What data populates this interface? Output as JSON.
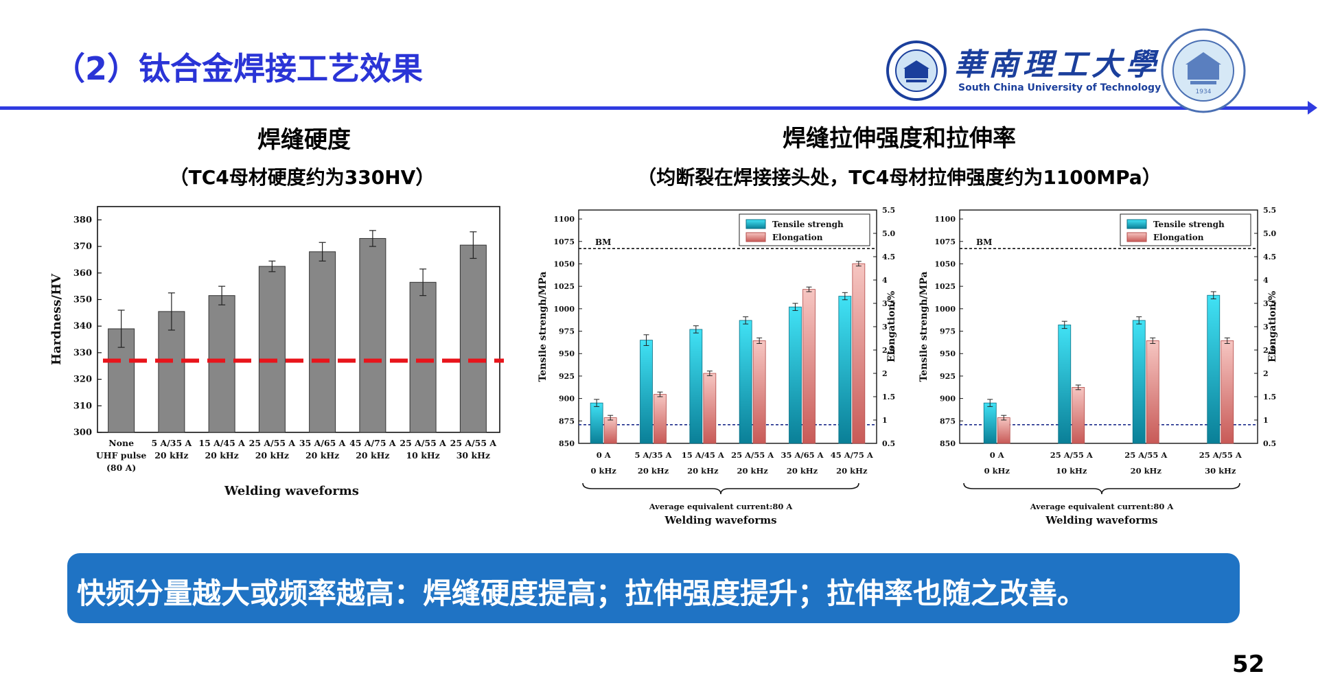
{
  "header": {
    "title": "（2）钛合金焊接工艺效果",
    "logo_cn": "華南理工大學",
    "logo_en": "South China University of Technology",
    "seal_mark": "1934"
  },
  "sections": {
    "hardness_title": "焊缝硬度",
    "hardness_subtitle": "（TC4母材硬度约为330HV）",
    "tensile_title": "焊缝拉伸强度和拉伸率",
    "tensile_subtitle": "（均断裂在焊接接头处，TC4母材拉伸强度约为1100MPa）"
  },
  "chart_data": [
    {
      "type": "bar",
      "categories": [
        "None\nUHF pulse\n(80 A)",
        "5 A/35 A\n20 kHz",
        "15 A/45 A\n20 kHz",
        "25 A/55 A\n20 kHz",
        "35 A/65 A\n20 kHz",
        "45 A/75 A\n20 kHz",
        "25 A/55 A\n10 kHz",
        "25 A/55 A\n30 kHz"
      ],
      "values": [
        339,
        345.5,
        351.5,
        362.5,
        368,
        373,
        356.5,
        370.5
      ],
      "errors": [
        7,
        7,
        3.5,
        2,
        3.5,
        3,
        5,
        5
      ],
      "reference_line": 327,
      "xlabel": "Welding waveforms",
      "ylabel": "Hardness/HV",
      "ylim": [
        300,
        385
      ],
      "yticks": [
        300,
        310,
        320,
        330,
        340,
        350,
        360,
        370,
        380
      ],
      "grid": false,
      "colors": {
        "bar": "#878787",
        "reference": "#e8141b"
      }
    },
    {
      "type": "bar",
      "categories": [
        "0 A\n0 kHz",
        "5 A/35 A\n20 kHz",
        "15 A/45 A\n20 kHz",
        "25 A/55 A\n20 kHz",
        "35 A/65 A\n20 kHz",
        "45 A/75 A\n20 kHz"
      ],
      "series": [
        {
          "name": "Tensile strengh",
          "axis": "left",
          "values": [
            895,
            965,
            977,
            987,
            1002,
            1014
          ],
          "errors": [
            4,
            6,
            4,
            4,
            4,
            4
          ]
        },
        {
          "name": "Elongation",
          "axis": "right",
          "values": [
            1.05,
            1.55,
            2.0,
            2.7,
            3.8,
            4.35
          ],
          "errors": [
            0.05,
            0.05,
            0.05,
            0.06,
            0.05,
            0.05
          ]
        }
      ],
      "bm_label": "BM",
      "bm_value": 1067,
      "right_ref_line": 0.9,
      "xlabel": "Welding waveforms",
      "note": "Average equivalent current:80 A",
      "ylabel": "Tensile strengh/MPa",
      "y2label": "Elongation/%",
      "ylim": [
        850,
        1110
      ],
      "yticks": [
        850,
        875,
        900,
        925,
        950,
        975,
        1000,
        1025,
        1050,
        1075,
        1100
      ],
      "y2lim": [
        0.5,
        5.5
      ],
      "y2ticks": [
        "0.5",
        "1",
        "1.5",
        "2",
        "2.5",
        "3",
        "3.5",
        "4",
        "4.5",
        "5.0",
        "5.5"
      ],
      "legend": "top-right",
      "colors": {
        "tensile_top": "#41e2f5",
        "tensile_bottom": "#0a7f97",
        "elong_top": "#f6c6c2",
        "elong_bottom": "#c85a57"
      }
    },
    {
      "type": "bar",
      "categories": [
        "0 A\n0 kHz",
        "25 A/55 A\n10 kHz",
        "25 A/55 A\n20 kHz",
        "25 A/55 A\n30 kHz"
      ],
      "series": [
        {
          "name": "Tensile strengh",
          "axis": "left",
          "values": [
            895,
            982,
            987,
            1015
          ],
          "errors": [
            4,
            4,
            4,
            4
          ]
        },
        {
          "name": "Elongation",
          "axis": "right",
          "values": [
            1.05,
            1.7,
            2.7,
            2.7
          ],
          "errors": [
            0.05,
            0.05,
            0.06,
            0.06
          ]
        }
      ],
      "bm_label": "BM",
      "bm_value": 1067,
      "right_ref_line": 0.9,
      "xlabel": "Welding waveforms",
      "note": "Average equivalent current:80 A",
      "ylabel": "Tensile strengh/MPa",
      "y2label": "Elongation/%",
      "ylim": [
        850,
        1110
      ],
      "yticks": [
        850,
        875,
        900,
        925,
        950,
        975,
        1000,
        1025,
        1050,
        1075,
        1100
      ],
      "y2lim": [
        0.5,
        5.5
      ],
      "y2ticks": [
        "0.5",
        "1",
        "1.5",
        "2",
        "2.5",
        "3",
        "3.5",
        "4",
        "4.5",
        "5.0",
        "5.5"
      ],
      "legend": "top-right",
      "colors": {
        "tensile_top": "#41e2f5",
        "tensile_bottom": "#0a7f97",
        "elong_top": "#f6c6c2",
        "elong_bottom": "#c85a57"
      }
    }
  ],
  "banner": {
    "text": "快频分量越大或频率越高：焊缝硬度提高；拉伸强度提升；拉伸率也随之改善。"
  },
  "footer": {
    "page_number": "52"
  }
}
